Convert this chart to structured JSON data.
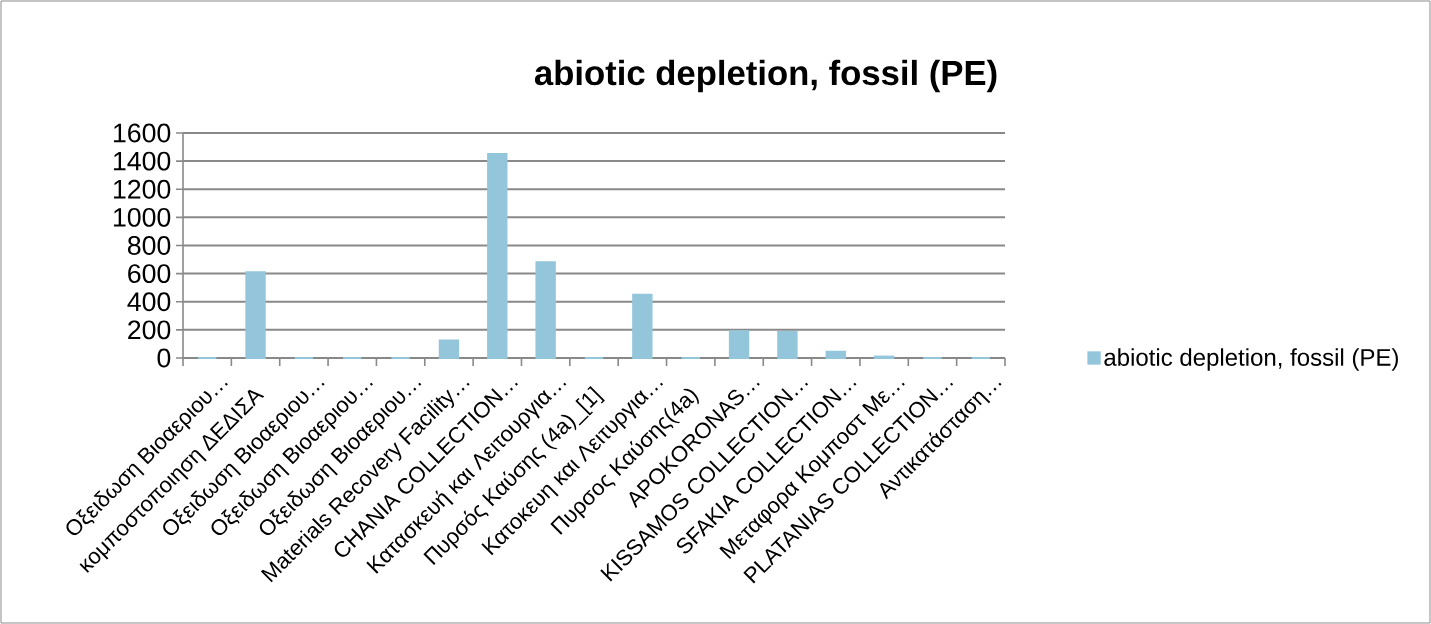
{
  "chart_data": {
    "type": "bar",
    "title": "abiotic depletion, fossil (PE)",
    "categories": [
      "Οξειδωση Βιοαεριου…",
      "κομποστοποιηση ΔΕΔΙΣΑ",
      "Οξειδωση Βιοαεριου…",
      "Οξειδωση Βιοαεριου…",
      "Οξειδωση Βιοαεριου…",
      "Materials Recovery Facility…",
      "CHANIA COLLECTION…",
      "Κατασκευή και Λειτουργια…",
      "Πυρσός Καύσης (4a)_[1]",
      "Κατοκευη και Λειτυργια…",
      "Πυρσος Καύσης(4a)",
      "APOKORONAS…",
      "KISSAMOS COLLECTION…",
      "SFAKIA COLLECTION…",
      "Μεταφορα Κομποστ Με…",
      "PLATANIAS COLLECTION…",
      "Αντικατάσταση…"
    ],
    "series": [
      {
        "name": "abiotic depletion, fossil (PE)",
        "color": "#93c6da",
        "values": [
          0,
          610,
          0,
          0,
          0,
          125,
          1450,
          680,
          0,
          450,
          0,
          190,
          185,
          45,
          10,
          0,
          0
        ]
      }
    ],
    "ylim": [
      0,
      1600
    ],
    "yticks": [
      0,
      200,
      400,
      600,
      800,
      1000,
      1200,
      1400,
      1600
    ],
    "grid": "y",
    "legend": "right"
  }
}
